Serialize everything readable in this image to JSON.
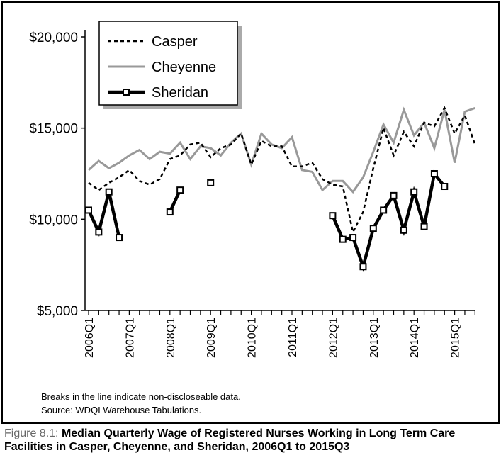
{
  "chart_data": {
    "type": "line",
    "title": "",
    "xlabel": "",
    "ylabel": "",
    "ylim": [
      5000,
      20000
    ],
    "y_ticks": [
      "$5,000",
      "$10,000",
      "$15,000",
      "$20,000"
    ],
    "y_tick_values": [
      5000,
      10000,
      15000,
      20000
    ],
    "x_ticks": [
      "2006Q1",
      "2007Q1",
      "2008Q1",
      "2009Q1",
      "2010Q1",
      "2011Q1",
      "2012Q1",
      "2013Q1",
      "2014Q1",
      "2015Q1"
    ],
    "x_range": [
      "2006Q1",
      "2015Q3"
    ],
    "x": [
      "2006Q1",
      "2006Q2",
      "2006Q3",
      "2006Q4",
      "2007Q1",
      "2007Q2",
      "2007Q3",
      "2007Q4",
      "2008Q1",
      "2008Q2",
      "2008Q3",
      "2008Q4",
      "2009Q1",
      "2009Q2",
      "2009Q3",
      "2009Q4",
      "2010Q1",
      "2010Q2",
      "2010Q3",
      "2010Q4",
      "2011Q1",
      "2011Q2",
      "2011Q3",
      "2011Q4",
      "2012Q1",
      "2012Q2",
      "2012Q3",
      "2012Q4",
      "2013Q1",
      "2013Q2",
      "2013Q3",
      "2013Q4",
      "2014Q1",
      "2014Q2",
      "2014Q3",
      "2014Q4",
      "2015Q1",
      "2015Q2",
      "2015Q3"
    ],
    "legend_position": "top-left",
    "grid": false,
    "series": [
      {
        "name": "Casper",
        "style": "dashed",
        "color": "#000000",
        "values": [
          12000,
          11600,
          12000,
          12300,
          12700,
          12100,
          11900,
          12200,
          13300,
          13500,
          14100,
          14200,
          13400,
          13900,
          14100,
          14700,
          13000,
          14300,
          14000,
          14000,
          12900,
          12900,
          13100,
          12200,
          11900,
          11800,
          9300,
          10400,
          12800,
          15000,
          13500,
          14800,
          14000,
          15300,
          15100,
          16100,
          14700,
          15700,
          14100
        ]
      },
      {
        "name": "Cheyenne",
        "style": "solid",
        "color": "#999999",
        "values": [
          12700,
          13200,
          12800,
          13100,
          13500,
          13800,
          13300,
          13700,
          13600,
          14200,
          13300,
          14000,
          13900,
          13500,
          14200,
          14700,
          13000,
          14700,
          14100,
          13900,
          14500,
          12700,
          12600,
          11600,
          12100,
          12100,
          11500,
          12300,
          13700,
          15200,
          14200,
          16000,
          14600,
          15300,
          13900,
          16000,
          13100,
          15900,
          16100
        ]
      },
      {
        "name": "Sheridan",
        "style": "solid-thick",
        "marker": "square",
        "color": "#000000",
        "values": [
          10500,
          9300,
          11500,
          9000,
          null,
          null,
          null,
          null,
          10400,
          11600,
          null,
          null,
          12000,
          null,
          null,
          null,
          null,
          null,
          null,
          null,
          null,
          null,
          null,
          null,
          10200,
          8900,
          9000,
          7400,
          9500,
          10500,
          11300,
          9400,
          11500,
          9600,
          12500,
          11800,
          null,
          null,
          null
        ]
      }
    ]
  },
  "notes": {
    "line1": "Breaks in the line indicate non-discloseable data.",
    "line2": "Source: WDQI Warehouse Tabulations."
  },
  "caption": {
    "label": "Figure 8.1:",
    "text": "Median Quarterly Wage of Registered Nurses Working in Long Term Care Facilities in Casper, Cheyenne, and Sheridan, 2006Q1 to 2015Q3"
  }
}
